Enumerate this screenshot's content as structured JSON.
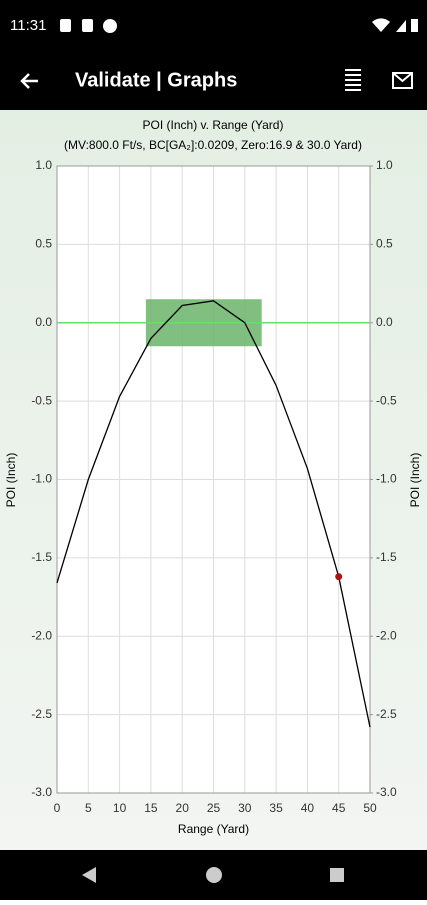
{
  "status_bar": {
    "time": "11:31"
  },
  "app_bar": {
    "title": "Validate | Graphs"
  },
  "chart_data": {
    "type": "line",
    "title": "POI (Inch) v. Range (Yard)",
    "subtitle": "(MV:800.0 Ft/s, BC[GA₂]:0.0209, Zero:16.9 & 30.0 Yard)",
    "x_label": "Range (Yard)",
    "y_label": "POI (Inch)",
    "y2_label": "POI (Inch)",
    "x": [
      0,
      5,
      10,
      15,
      20,
      25,
      30,
      35,
      40,
      45,
      50
    ],
    "series": [
      {
        "color": "#000000",
        "values": [
          -1.66,
          -1.0,
          -0.47,
          -0.1,
          0.11,
          0.14,
          0.0,
          -0.4,
          -0.93,
          -1.62,
          -2.58
        ]
      }
    ],
    "highlight_point": {
      "x": 45,
      "y": -1.62,
      "color": "#b01010"
    },
    "target_box": {
      "x": [
        14.2,
        32.7
      ],
      "y": [
        -0.15,
        0.15
      ],
      "color": "#6ab46a"
    },
    "zero_line_color": "#66e066",
    "xlim": [
      0,
      50
    ],
    "xticks": [
      0,
      5,
      10,
      15,
      20,
      25,
      30,
      35,
      40,
      45,
      50
    ],
    "ylim": [
      -3,
      1
    ],
    "yticks": [
      {
        "value": 1,
        "label": "1.0"
      },
      {
        "value": 0.5,
        "label": "0.5"
      },
      {
        "value": 0,
        "label": "0.0"
      },
      {
        "value": -0.5,
        "label": "-0.5"
      },
      {
        "value": -1,
        "label": "-1.0"
      },
      {
        "value": -1.5,
        "label": "-1.5"
      },
      {
        "value": -2,
        "label": "-2.0"
      },
      {
        "value": -2.5,
        "label": "-2.5"
      },
      {
        "value": -3,
        "label": "-3.0"
      }
    ],
    "y2lim": [
      -3,
      1
    ],
    "y2ticks": [
      {
        "value": 1,
        "label": "1.0"
      },
      {
        "value": 0.5,
        "label": "0.5"
      },
      {
        "value": 0,
        "label": "0.0"
      },
      {
        "value": -0.5,
        "label": "-0.5"
      },
      {
        "value": -1,
        "label": "-1.0"
      },
      {
        "value": -1.5,
        "label": "-1.5"
      },
      {
        "value": -2,
        "label": "-2.0"
      },
      {
        "value": -2.5,
        "label": "-2.5"
      },
      {
        "value": -3,
        "label": "-3.0"
      }
    ],
    "grid": true
  }
}
